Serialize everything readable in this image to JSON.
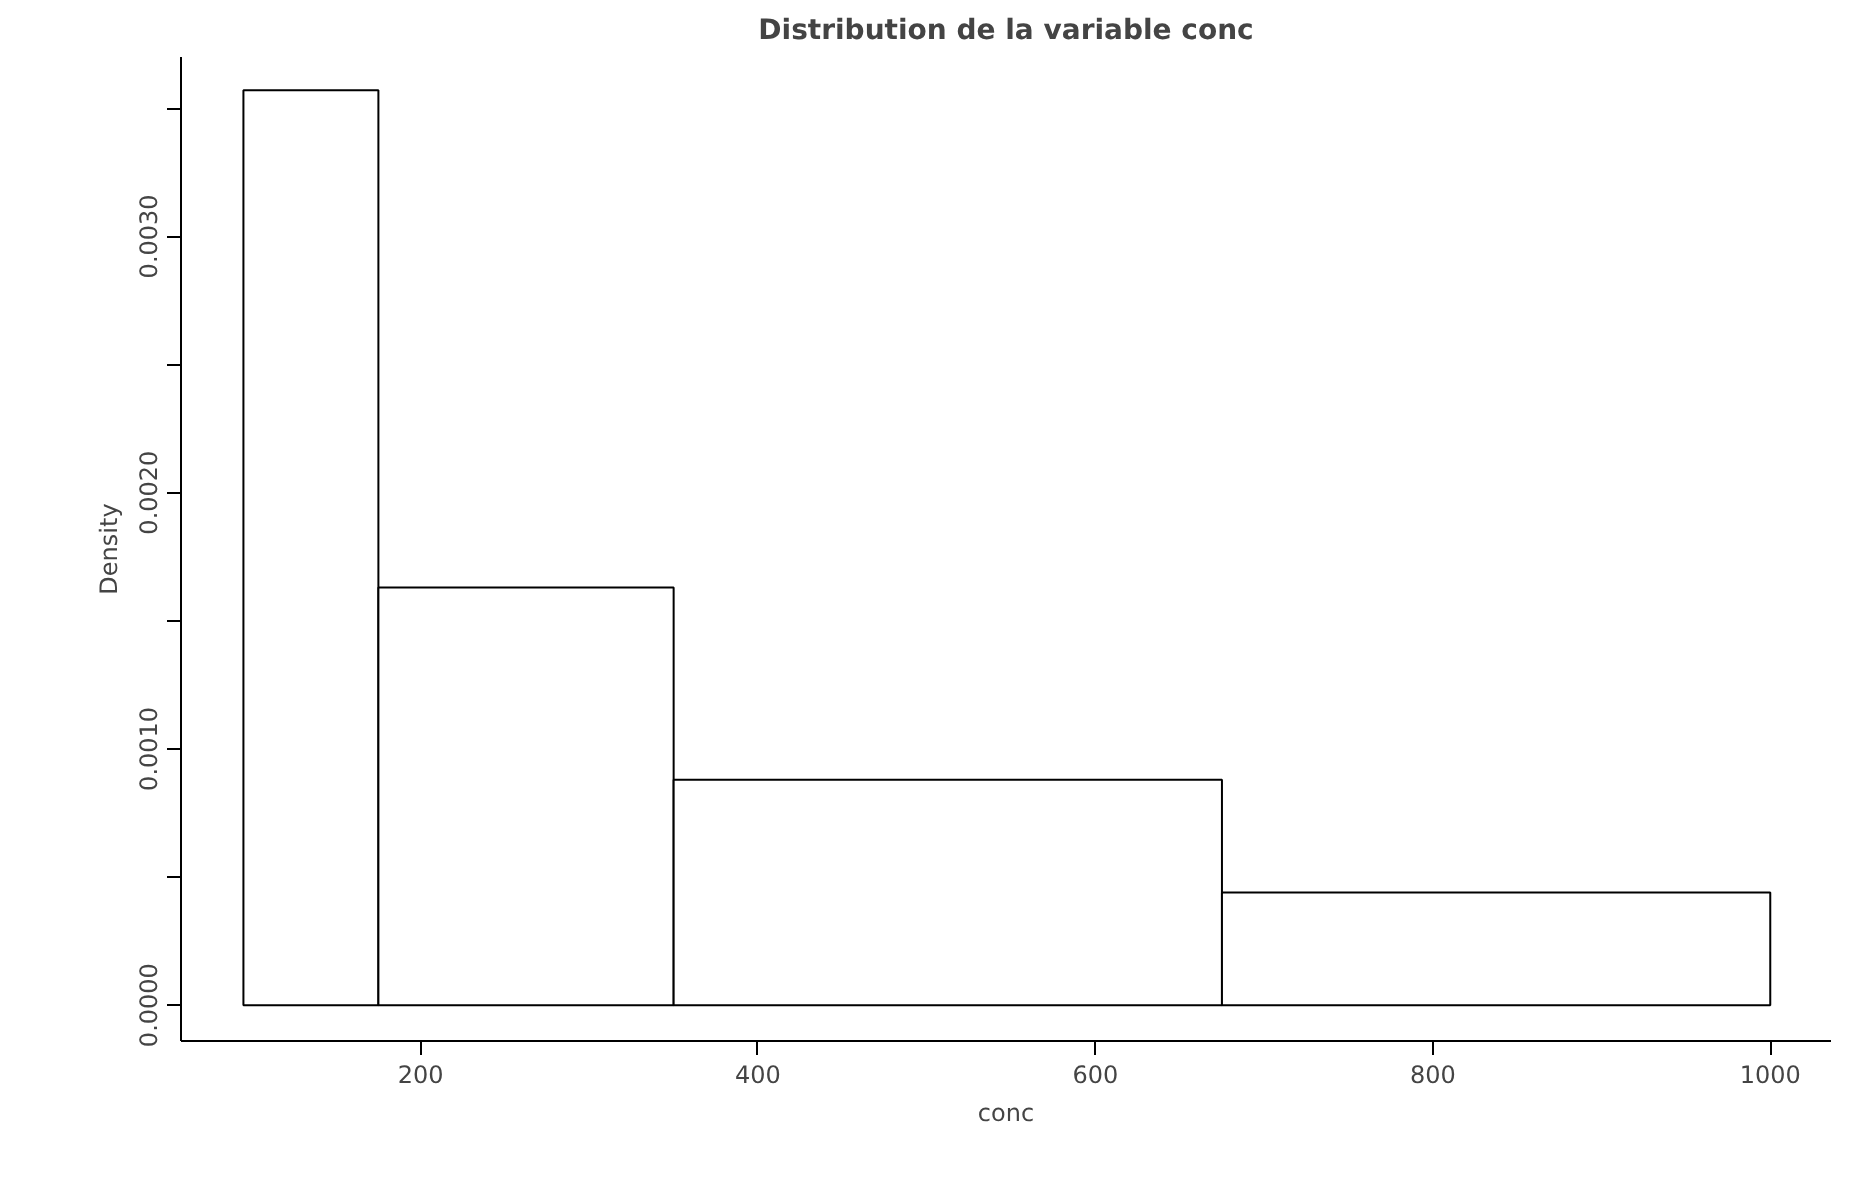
{
  "chart_data": {
    "type": "histogram",
    "title": "Distribution de la variable conc",
    "xlabel": "conc",
    "ylabel": "Density",
    "bins": [
      95,
      175,
      350,
      675,
      1000
    ],
    "values": [
      0.00357,
      0.00163,
      0.00088,
      0.00044
    ],
    "color": "#ffffff",
    "xlim": [
      58,
      1036
    ],
    "ylim": [
      -0.00014,
      0.0037
    ],
    "xticks": [
      200,
      400,
      600,
      800,
      1000
    ],
    "yticks": [
      {
        "value": 0,
        "label": "0.0000"
      },
      {
        "value": 0.0005,
        "label": null
      },
      {
        "value": 0.001,
        "label": "0.0010"
      },
      {
        "value": 0.0015,
        "label": null
      },
      {
        "value": 0.002,
        "label": "0.0020"
      },
      {
        "value": 0.0025,
        "label": null
      },
      {
        "value": 0.003,
        "label": "0.0030"
      },
      {
        "value": 0.0035,
        "label": null
      }
    ],
    "grid": false
  }
}
